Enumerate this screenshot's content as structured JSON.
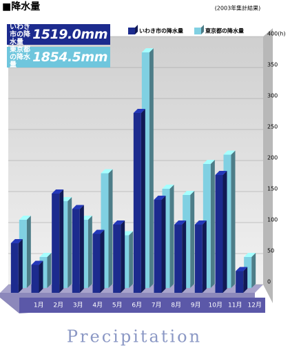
{
  "chart_data": {
    "type": "bar3d",
    "title": "■降水量",
    "subtitle": "(2003年集計結果)",
    "annotations": [
      {
        "label": "いわき市の降水量",
        "total": "1519.0mm"
      },
      {
        "label": "東京都の降水量",
        "total": "1854.5mm"
      }
    ],
    "categories": [
      "1月",
      "2月",
      "3月",
      "4月",
      "5月",
      "6月",
      "7月",
      "8月",
      "9月",
      "10月",
      "11月",
      "12月"
    ],
    "series": [
      {
        "name": "いわき市の降水量",
        "color": "#1c2b8e",
        "values": [
          80,
          45,
          160,
          135,
          95,
          110,
          290,
          150,
          110,
          110,
          190,
          35
        ]
      },
      {
        "name": "東京都の降水量",
        "color": "#80d0e2",
        "values": [
          110,
          50,
          140,
          110,
          185,
          85,
          380,
          160,
          150,
          200,
          215,
          50
        ]
      }
    ],
    "ylim": [
      0,
      400
    ],
    "yticks": [
      0,
      50,
      100,
      150,
      200,
      250,
      300,
      350,
      {
        "value": 400,
        "label": "400(h)"
      }
    ],
    "grid": true,
    "watermark": "Precipitation"
  }
}
